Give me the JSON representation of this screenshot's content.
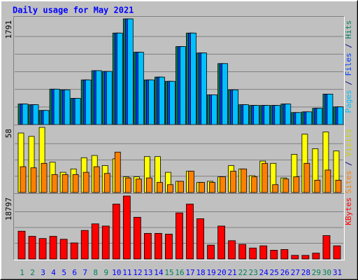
{
  "chart_data": [
    {
      "type": "bar",
      "title": "Daily usage for May 2021",
      "legend_separator": " / ",
      "ylim": [
        0,
        1791
      ],
      "yticks": [
        1791
      ],
      "series": [
        {
          "name": "Pages",
          "color": "#00c0ff",
          "values": [
            349,
            337,
            240,
            601,
            589,
            445,
            757,
            914,
            901,
            1551,
            1791,
            1226,
            757,
            805,
            733,
            1322,
            1551,
            1214,
            505,
            1034,
            589,
            337,
            325,
            325,
            325,
            349,
            204,
            216,
            276,
            517,
            300
          ]
        },
        {
          "name": "Files",
          "color": "#0040ff",
          "values": [
            349,
            337,
            240,
            601,
            589,
            445,
            757,
            914,
            901,
            1551,
            1791,
            1226,
            757,
            805,
            733,
            1322,
            1551,
            1214,
            505,
            1034,
            589,
            337,
            325,
            325,
            325,
            349,
            204,
            216,
            276,
            517,
            300
          ]
        },
        {
          "name": "Hits",
          "color": "#00805c",
          "values": [
            349,
            337,
            240,
            601,
            589,
            445,
            757,
            914,
            901,
            1551,
            1791,
            1226,
            757,
            805,
            733,
            1322,
            1551,
            1214,
            505,
            1034,
            589,
            337,
            325,
            325,
            325,
            349,
            204,
            216,
            276,
            517,
            300
          ]
        }
      ]
    },
    {
      "type": "bar",
      "legend_separator": " / ",
      "ylim": [
        0,
        58
      ],
      "yticks": [
        58
      ],
      "series": [
        {
          "name": "Sites",
          "color": "#ff8000",
          "values": [
            23,
            22,
            26,
            16,
            16,
            16,
            18,
            23,
            17,
            36,
            13,
            12,
            13,
            9,
            7,
            10,
            19,
            9,
            9,
            14,
            19,
            21,
            14,
            26,
            7,
            12,
            14,
            26,
            11,
            20,
            11
          ]
        },
        {
          "name": "Visits",
          "color": "#ffff00",
          "values": [
            53,
            50,
            58,
            27,
            18,
            21,
            31,
            33,
            24,
            30,
            14,
            14,
            32,
            32,
            18,
            10,
            19,
            9,
            10,
            14,
            24,
            21,
            15,
            28,
            26,
            13,
            34,
            52,
            39,
            54,
            37
          ]
        }
      ]
    },
    {
      "type": "bar",
      "legend_separator": " / ",
      "ylim": [
        0,
        18797
      ],
      "yticks": [
        18797
      ],
      "series": [
        {
          "name": "KBytes",
          "color": "#ff0000",
          "values": [
            8306,
            6776,
            6120,
            6776,
            5901,
            4809,
            8524,
            10491,
            9836,
            16393,
            18797,
            12458,
            7650,
            7650,
            7431,
            13770,
            16393,
            12021,
            4153,
            9836,
            5464,
            4371,
            3279,
            3934,
            2623,
            2841,
            1093,
            1093,
            1749,
            6994,
            3934
          ]
        }
      ],
      "categories": [
        "1",
        "2",
        "3",
        "4",
        "5",
        "6",
        "7",
        "8",
        "9",
        "10",
        "11",
        "12",
        "13",
        "14",
        "15",
        "16",
        "17",
        "18",
        "19",
        "20",
        "21",
        "22",
        "23",
        "24",
        "25",
        "26",
        "27",
        "28",
        "29",
        "30",
        "31"
      ],
      "category_colors": [
        "#00805c",
        "#00805c",
        "#0000ff",
        "#0000ff",
        "#0000ff",
        "#0000ff",
        "#0000ff",
        "#00805c",
        "#00805c",
        "#0000ff",
        "#0000ff",
        "#0000ff",
        "#0000ff",
        "#0000ff",
        "#00805c",
        "#00805c",
        "#0000ff",
        "#0000ff",
        "#0000ff",
        "#0000ff",
        "#0000ff",
        "#00805c",
        "#00805c",
        "#0000ff",
        "#0000ff",
        "#0000ff",
        "#0000ff",
        "#0000ff",
        "#00805c",
        "#00805c",
        "#0000ff"
      ]
    }
  ]
}
